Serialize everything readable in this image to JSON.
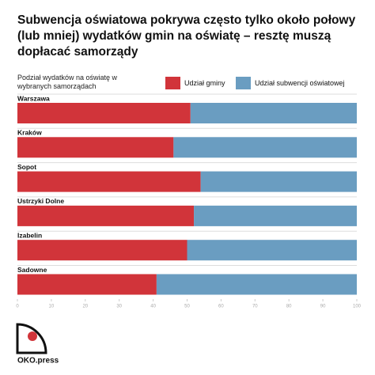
{
  "chart_data": {
    "type": "stacked-barh",
    "title": "Subwencja oświatowa pokrywa często tylko około połowy (lub mniej) wydatków gmin na oświatę – resztę muszą dopłacać samorządy",
    "subtitle": "Podział wydatków na oświatę w wybranych samorządach",
    "categories": [
      "Warszawa",
      "Kraków",
      "Sopot",
      "Ustrzyki Dolne",
      "Izabelin",
      "Sadowne"
    ],
    "series": [
      {
        "name": "Udział gminy",
        "color": "#d1343a",
        "values": [
          51,
          46,
          54,
          52,
          50,
          41
        ]
      },
      {
        "name": "Udział subwencji oświatowej",
        "color": "#6a9dc1",
        "values": [
          49,
          54,
          46,
          48,
          50,
          59
        ]
      }
    ],
    "xlim": [
      0,
      100
    ],
    "xticks": [
      0,
      10,
      20,
      30,
      40,
      50,
      60,
      70,
      80,
      90,
      100
    ],
    "logo": "OKO.press"
  }
}
